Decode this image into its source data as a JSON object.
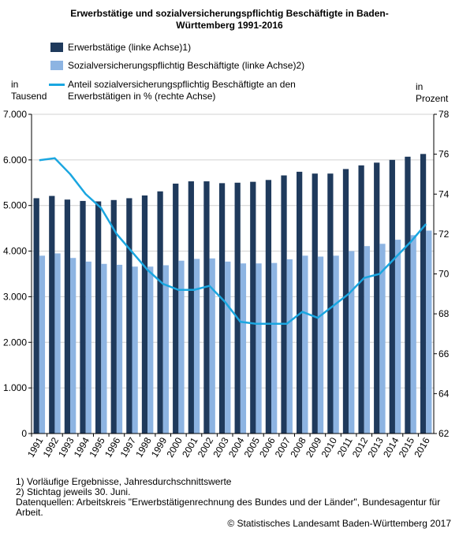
{
  "title_line1": "Erwerbstätige und sozialversicherungspflichtig Beschäftigte in Baden-",
  "title_line2": "Württemberg 1991-2016",
  "left_unit_line1": "in",
  "left_unit_line2": "Tausend",
  "right_unit_line1": "in",
  "right_unit_line2": "Prozent",
  "footnotes": [
    "1) Vorläufige Ergebnisse, Jahresdurchschnittswerte",
    "2) Stichtag jeweils 30. Juni.",
    "Datenquellen: Arbeitskreis \"Erwerbstätigenrechnung des Bundes und der Länder\", Bundesagentur für Arbeit."
  ],
  "copyright": "© Statistisches Landesamt Baden-Württemberg 2017",
  "colors": {
    "erwerbstaetige": "#1f3a5c",
    "svb": "#8db4e2",
    "anteil": "#1aa6e0",
    "grid": "#d0d0d0"
  },
  "chart_data": {
    "type": "bar",
    "categories": [
      "1991",
      "1992",
      "1993",
      "1994",
      "1995",
      "1996",
      "1997",
      "1998",
      "1999",
      "2000",
      "2001",
      "2002",
      "2003",
      "2004",
      "2005",
      "2006",
      "2007",
      "2008",
      "2009",
      "2010",
      "2011",
      "2012",
      "2013",
      "2014",
      "2015",
      "2016"
    ],
    "left_axis": {
      "ylim": [
        0,
        7000
      ],
      "ticks": [
        0,
        1000,
        2000,
        3000,
        4000,
        5000,
        6000,
        7000
      ],
      "tick_labels": [
        "0",
        "1.000",
        "2.000",
        "3.000",
        "4.000",
        "5.000",
        "6.000",
        "7.000"
      ]
    },
    "right_axis": {
      "ylim": [
        62,
        78
      ],
      "ticks": [
        62,
        64,
        66,
        68,
        70,
        72,
        74,
        76,
        78
      ],
      "tick_labels": [
        "62",
        "64",
        "66",
        "68",
        "70",
        "72",
        "74",
        "76",
        "78"
      ]
    },
    "grid": true,
    "legend_position": "top",
    "series": [
      {
        "name": "Erwerbstätige (linke Achse)1)",
        "kind": "bar",
        "axis": "left",
        "values": [
          5160,
          5210,
          5130,
          5100,
          5090,
          5120,
          5160,
          5220,
          5310,
          5480,
          5530,
          5530,
          5490,
          5500,
          5520,
          5560,
          5660,
          5740,
          5700,
          5700,
          5800,
          5880,
          5940,
          6000,
          6070,
          6130
        ]
      },
      {
        "name": "Sozialversicherungspflichtig Beschäftigte (linke Achse)2)",
        "kind": "bar",
        "axis": "left",
        "values": [
          3900,
          3950,
          3850,
          3770,
          3720,
          3700,
          3660,
          3660,
          3690,
          3790,
          3830,
          3840,
          3770,
          3730,
          3730,
          3740,
          3820,
          3900,
          3880,
          3900,
          4000,
          4110,
          4160,
          4250,
          4350,
          4450
        ]
      },
      {
        "name": "Anteil sozialversicherungspflichtig Beschäftigte an den Erwerbstätigen in % (rechte Achse)",
        "kind": "line",
        "axis": "right",
        "values": [
          75.7,
          75.8,
          75.0,
          74.0,
          73.3,
          72.0,
          71.1,
          70.2,
          69.5,
          69.2,
          69.2,
          69.4,
          68.6,
          67.6,
          67.5,
          67.5,
          67.5,
          68.1,
          67.8,
          68.4,
          69.0,
          69.8,
          70.0,
          70.8,
          71.6,
          72.5
        ]
      }
    ]
  }
}
